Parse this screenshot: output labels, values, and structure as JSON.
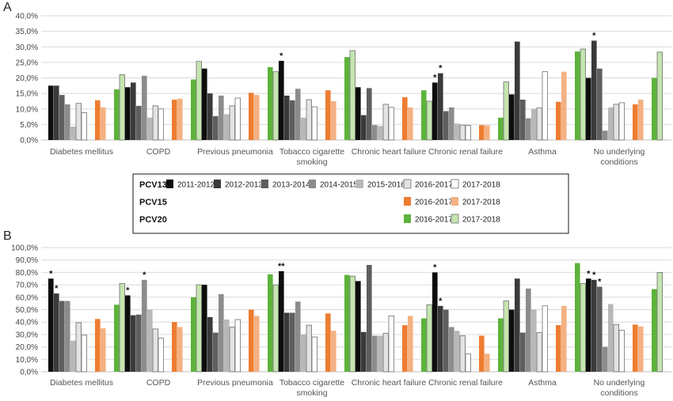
{
  "chart_data": [
    {
      "type": "bar",
      "panel_label": "A",
      "ylim": [
        0,
        40
      ],
      "ytick_step": 5,
      "ytick_format": "percent_comma_1",
      "grid": true,
      "categories": [
        [
          "Diabetes mellitus"
        ],
        [
          "COPD"
        ],
        [
          "Previous pneumonia"
        ],
        [
          "Tobacco cigarette",
          "smoking"
        ],
        [
          "Chronic heart failure"
        ],
        [
          "Chronic renal failure"
        ],
        [
          "Asthma"
        ],
        [
          "No underlying",
          "conditions"
        ]
      ],
      "series": [
        {
          "name": "2011-2012",
          "group": "PCV13",
          "color": "#0d0d0d",
          "values": [
            17.5,
            17,
            23,
            25.5,
            17,
            18.5,
            14.7,
            20
          ]
        },
        {
          "name": "2012-2013",
          "group": "PCV13",
          "color": "#3a3a3a",
          "values": [
            17.5,
            18.5,
            15,
            14.3,
            8,
            21.5,
            31.7,
            32
          ]
        },
        {
          "name": "2013-2014",
          "group": "PCV13",
          "color": "#5e5e5e",
          "values": [
            14.5,
            11,
            7.7,
            12.8,
            16.7,
            9.3,
            13,
            23
          ]
        },
        {
          "name": "2014-2015",
          "group": "PCV13",
          "color": "#8c8c8c",
          "values": [
            11.5,
            20.7,
            14.3,
            16.5,
            4.8,
            10.5,
            7,
            3
          ]
        },
        {
          "name": "2015-2016",
          "group": "PCV13",
          "color": "#b8b8b8",
          "values": [
            4.3,
            7.2,
            8.3,
            7.2,
            4.5,
            5.3,
            10,
            10.5
          ]
        },
        {
          "name": "2016-2017",
          "group": "PCV13",
          "color": "#e3e3e3",
          "values": [
            11.8,
            11,
            11,
            13,
            11.5,
            4.8,
            10.3,
            11.5
          ]
        },
        {
          "name": "2017-2018",
          "group": "PCV13",
          "color": "#ffffff",
          "values": [
            8.8,
            10,
            13.5,
            10.7,
            10.5,
            4.7,
            22,
            12
          ]
        },
        {
          "name": "2016-2017",
          "group": "PCV15",
          "color": "#ed7d31",
          "values": [
            12.8,
            13,
            15.2,
            16,
            13.8,
            4.8,
            12.3,
            11.5
          ]
        },
        {
          "name": "2017-2018",
          "group": "PCV15",
          "color": "#f4b183",
          "values": [
            10.5,
            13.3,
            14.5,
            12.5,
            10.5,
            4.7,
            22,
            13
          ]
        },
        {
          "name": "2016-2017",
          "group": "PCV20",
          "color": "#5db33b",
          "values": [
            16.3,
            19.5,
            23.5,
            26.7,
            16,
            7.2,
            28.5,
            20
          ]
        },
        {
          "name": "2017-2018",
          "group": "PCV20",
          "color": "#c4e5b0",
          "values": [
            21,
            25.3,
            22,
            28.8,
            12.5,
            18.7,
            29.3,
            28.3
          ]
        }
      ],
      "significance": [
        {
          "category": 3,
          "series": 0,
          "label": "*"
        },
        {
          "category": 5,
          "series": 0,
          "label": "*"
        },
        {
          "category": 5,
          "series": 1,
          "label": "*"
        },
        {
          "category": 7,
          "series": 1,
          "label": "*"
        }
      ]
    },
    {
      "type": "bar",
      "panel_label": "B",
      "ylim": [
        0,
        100
      ],
      "ytick_step": 10,
      "ytick_format": "percent_comma_1",
      "grid": true,
      "categories": [
        [
          "Diabetes mellitus"
        ],
        [
          "COPD"
        ],
        [
          "Previous pneumonia"
        ],
        [
          "Tobacco cigarette",
          "smoking"
        ],
        [
          "Chronic heart failure"
        ],
        [
          "Chronic renal failure"
        ],
        [
          "Asthma"
        ],
        [
          "No underlying",
          "conditions"
        ]
      ],
      "series": [
        {
          "name": "2011-2012",
          "group": "PCV13",
          "color": "#0d0d0d",
          "values": [
            75,
            61.5,
            70,
            81,
            73,
            80,
            50,
            75
          ]
        },
        {
          "name": "2012-2013",
          "group": "PCV13",
          "color": "#3a3a3a",
          "values": [
            63,
            45.5,
            44,
            47.5,
            32,
            53,
            75,
            74
          ]
        },
        {
          "name": "2013-2014",
          "group": "PCV13",
          "color": "#5e5e5e",
          "values": [
            57,
            46,
            31.5,
            47.5,
            86,
            50,
            31.5,
            68.5
          ]
        },
        {
          "name": "2014-2015",
          "group": "PCV13",
          "color": "#8c8c8c",
          "values": [
            57,
            74,
            62.5,
            56.5,
            29,
            36,
            67,
            20
          ]
        },
        {
          "name": "2015-2016",
          "group": "PCV13",
          "color": "#b8b8b8",
          "values": [
            25,
            50,
            42,
            30,
            29,
            33,
            50,
            54.5
          ]
        },
        {
          "name": "2016-2017",
          "group": "PCV13",
          "color": "#e3e3e3",
          "values": [
            39.5,
            34.5,
            36,
            37.5,
            31,
            29,
            31.5,
            38
          ]
        },
        {
          "name": "2017-2018",
          "group": "PCV13",
          "color": "#ffffff",
          "values": [
            29.5,
            27,
            42,
            28,
            45,
            14.5,
            53,
            33.5
          ]
        },
        {
          "name": "2016-2017",
          "group": "PCV15",
          "color": "#ed7d31",
          "values": [
            42.5,
            40,
            50,
            47,
            37.5,
            29,
            37.5,
            38
          ]
        },
        {
          "name": "2017-2018",
          "group": "PCV15",
          "color": "#f4b183",
          "values": [
            35,
            36,
            45,
            33,
            45,
            14.5,
            53,
            36.5
          ]
        },
        {
          "name": "2016-2017",
          "group": "PCV20",
          "color": "#5db33b",
          "values": [
            54,
            60,
            78.5,
            78,
            43,
            43,
            87.5,
            66.5
          ]
        },
        {
          "name": "2017-2018",
          "group": "PCV20",
          "color": "#c4e5b0",
          "values": [
            71,
            70,
            70,
            77,
            54,
            57,
            71,
            80
          ]
        }
      ],
      "significance": [
        {
          "category": 0,
          "series": 0,
          "label": "*"
        },
        {
          "category": 0,
          "series": 1,
          "label": "*"
        },
        {
          "category": 1,
          "series": 0,
          "label": "*"
        },
        {
          "category": 1,
          "series": 3,
          "label": "*"
        },
        {
          "category": 3,
          "series": 0,
          "label": "**"
        },
        {
          "category": 5,
          "series": 0,
          "label": "*"
        },
        {
          "category": 5,
          "series": 1,
          "label": "*"
        },
        {
          "category": 7,
          "series": 0,
          "label": "*"
        },
        {
          "category": 7,
          "series": 1,
          "label": "*"
        },
        {
          "category": 7,
          "series": 2,
          "label": "*"
        }
      ]
    }
  ],
  "legend": {
    "groups": [
      {
        "name": "PCV13",
        "entries": [
          {
            "label": "2011-2012",
            "color": "#0d0d0d"
          },
          {
            "label": "2012-2013",
            "color": "#3a3a3a"
          },
          {
            "label": "2013-2014",
            "color": "#5e5e5e"
          },
          {
            "label": "2014-2015",
            "color": "#8c8c8c"
          },
          {
            "label": "2015-2016",
            "color": "#b8b8b8"
          },
          {
            "label": "2016-2017",
            "color": "#e3e3e3"
          },
          {
            "label": "2017-2018",
            "color": "#ffffff"
          }
        ]
      },
      {
        "name": "PCV15",
        "entries": [
          {
            "label": "2016-2017",
            "color": "#ed7d31"
          },
          {
            "label": "2017-2018",
            "color": "#f4b183"
          }
        ]
      },
      {
        "name": "PCV20",
        "entries": [
          {
            "label": "2016-2017",
            "color": "#5db33b"
          },
          {
            "label": "2017-2018",
            "color": "#c4e5b0"
          }
        ]
      }
    ]
  }
}
